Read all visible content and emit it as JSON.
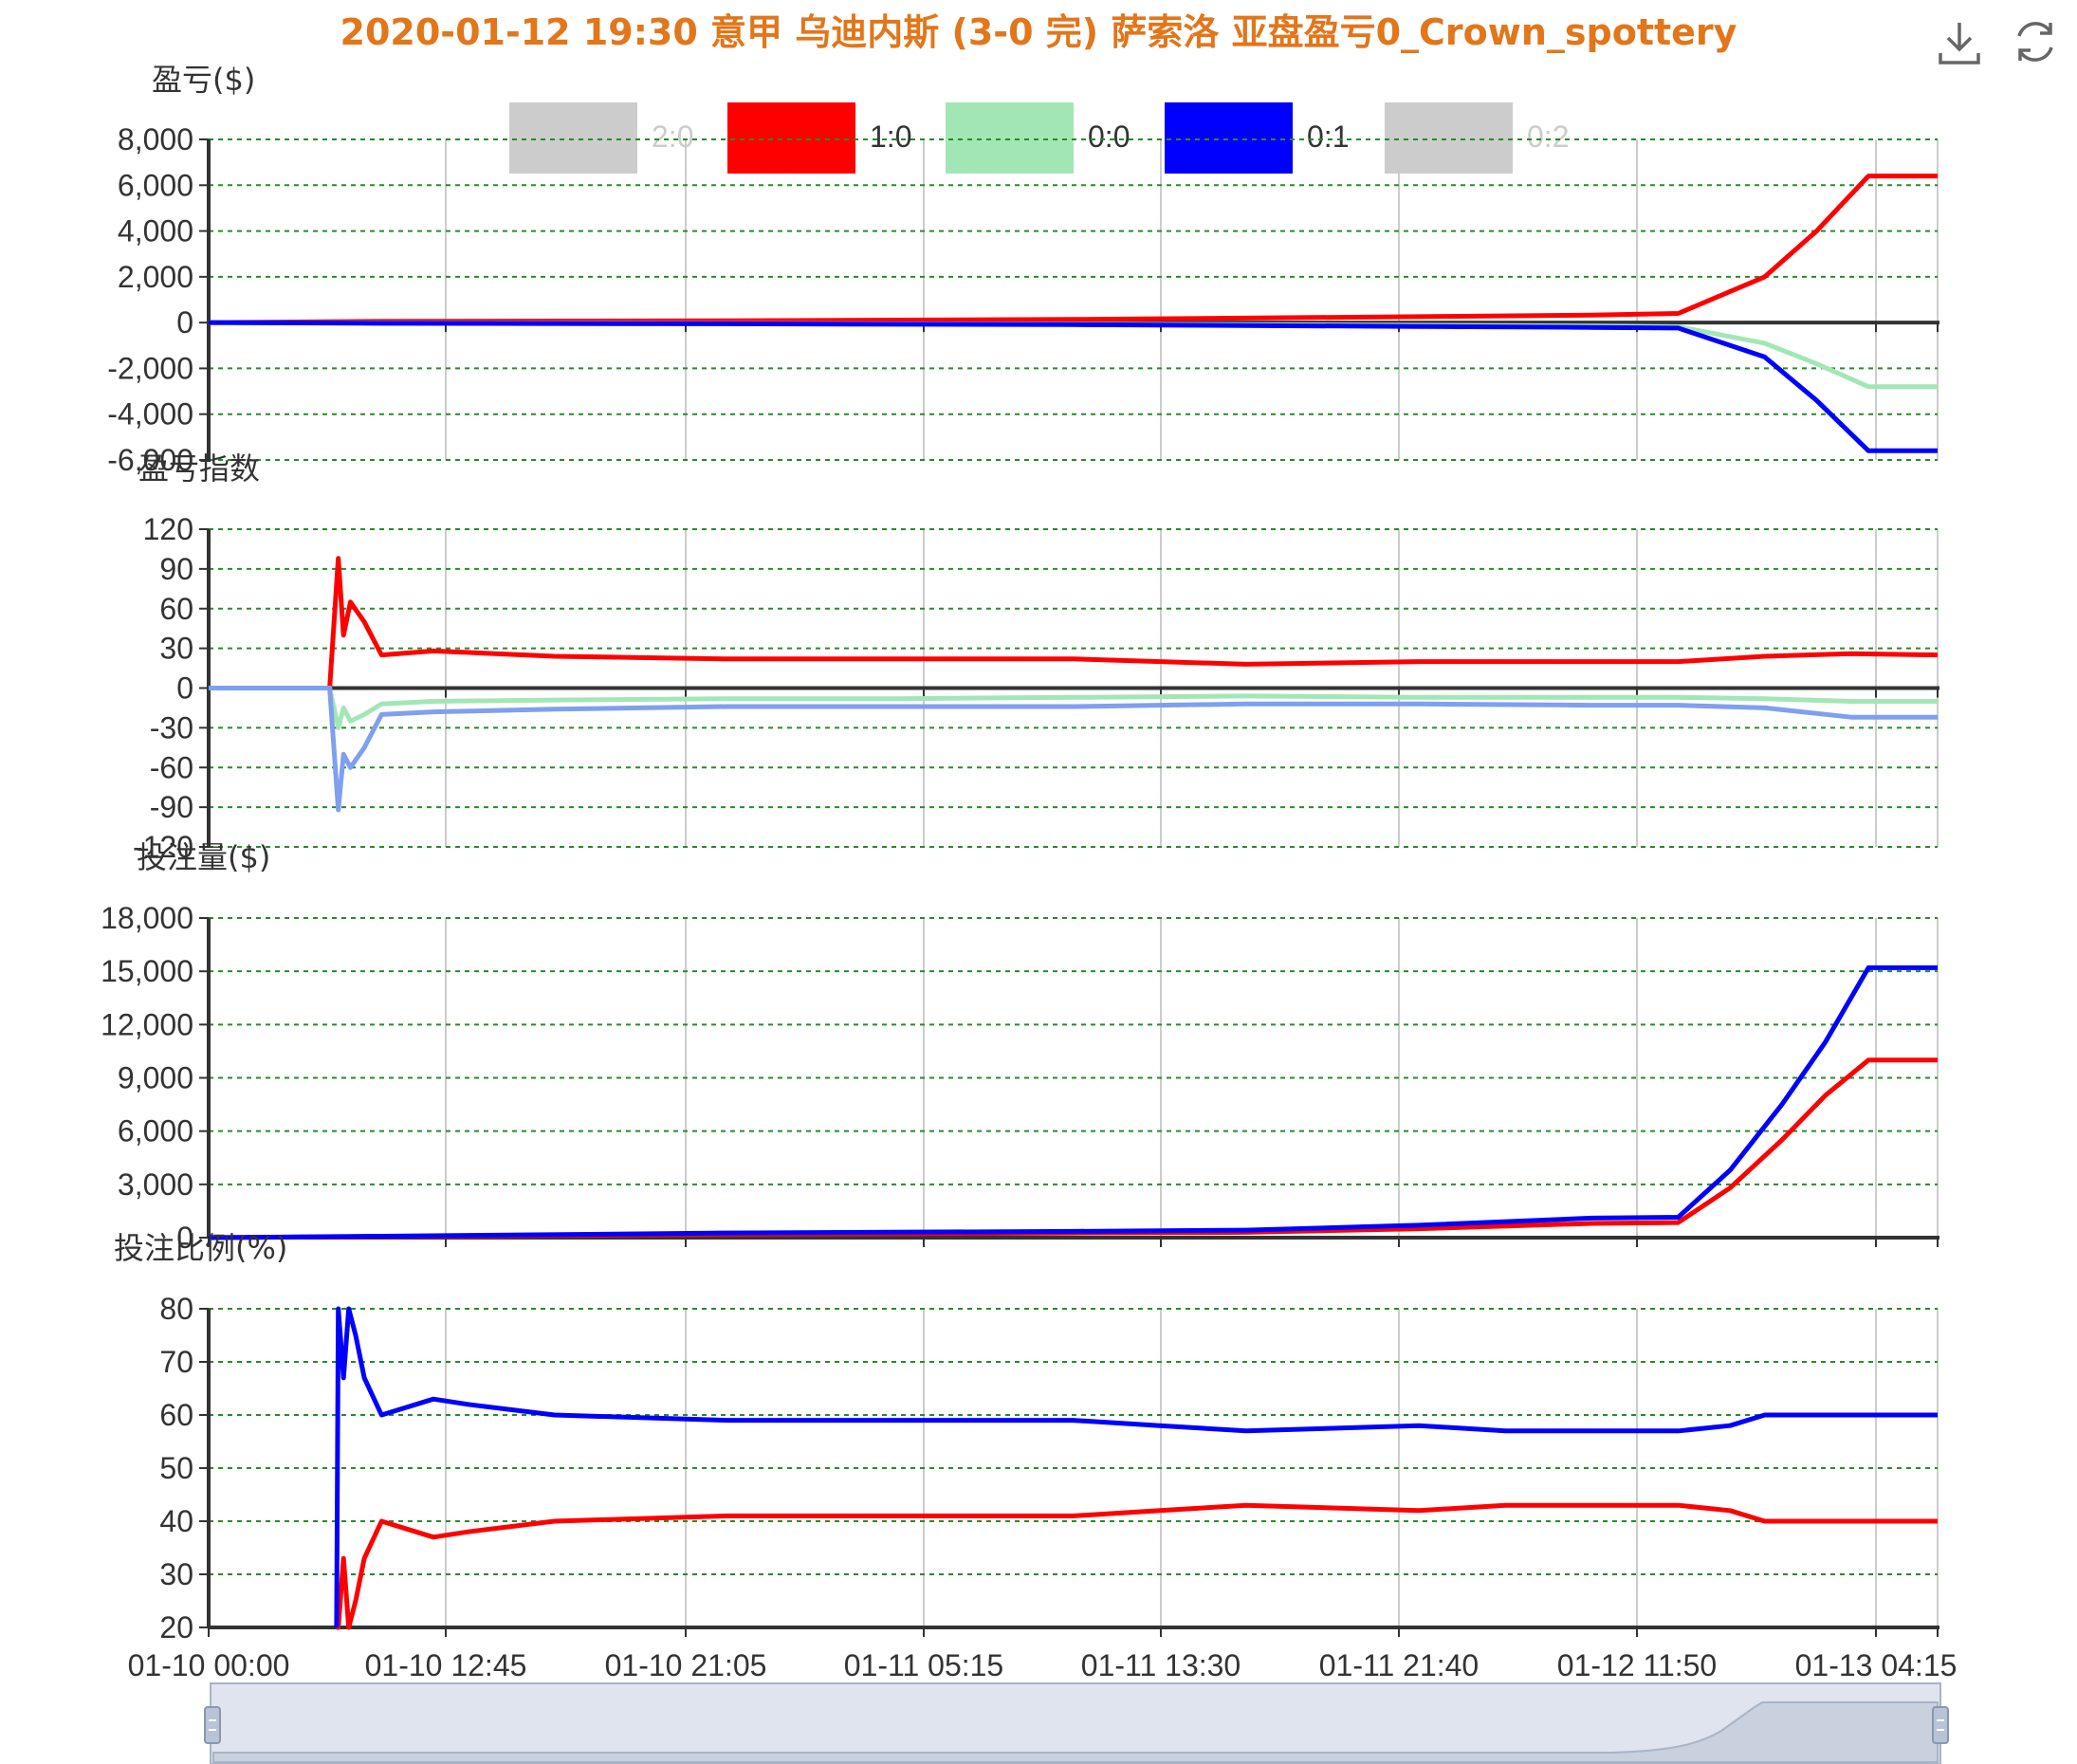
{
  "title": "2020-01-12 19:30 意甲 乌迪内斯 (3-0 完) 萨索洛 亚盘盈亏0_Crown_spottery",
  "colors": {
    "title": "#e2761a",
    "grid": "#2a8a2a",
    "axis": "#333333",
    "vgrid": "#cccccc",
    "zoom_fill": "#dfe4ee",
    "zoom_border": "#a8b3c6"
  },
  "toolbox": {
    "download": "download-icon",
    "refresh": "refresh-icon"
  },
  "legend": [
    {
      "name": "2:0",
      "color": "#cccccc",
      "active": false
    },
    {
      "name": "1:0",
      "color": "#ff0000",
      "active": true
    },
    {
      "name": "0:0",
      "color": "#a3e6b5",
      "active": true
    },
    {
      "name": "0:1",
      "color": "#0000ff",
      "active": true
    },
    {
      "name": "0:2",
      "color": "#cccccc",
      "active": false
    }
  ],
  "x_axis": {
    "tick_labels": [
      "01-10 00:00",
      "01-10 12:45",
      "01-10 21:05",
      "01-11 05:15",
      "01-11 13:30",
      "01-11 21:40",
      "01-12 11:50",
      "01-13 04:15"
    ]
  },
  "chart_data": [
    {
      "type": "line",
      "title": "盈亏($)",
      "ylim": [
        -6000,
        8000
      ],
      "yticks": [
        8000,
        6000,
        4000,
        2000,
        0,
        -2000,
        -4000,
        -6000
      ],
      "ytick_labels": [
        "8,000",
        "6,000",
        "4,000",
        "2,000",
        "0",
        "-2,000",
        "-4,000",
        "-6,000"
      ],
      "x": [
        0,
        0.1,
        0.3,
        0.5,
        0.7,
        0.8,
        0.85,
        0.9,
        0.93,
        0.96,
        1.0
      ],
      "series": [
        {
          "name": "1:0",
          "color": "#ff0000",
          "values": [
            0,
            50,
            80,
            140,
            260,
            330,
            400,
            2000,
            4000,
            6400,
            6400
          ]
        },
        {
          "name": "0:0",
          "color": "#a3e6b5",
          "values": [
            0,
            -20,
            -40,
            -70,
            -120,
            -150,
            -180,
            -900,
            -1800,
            -2800,
            -2800
          ]
        },
        {
          "name": "0:1",
          "color": "#0000ff",
          "values": [
            0,
            -30,
            -50,
            -90,
            -170,
            -210,
            -240,
            -1500,
            -3400,
            -5600,
            -5600
          ]
        }
      ]
    },
    {
      "type": "line",
      "title": "盈亏指数",
      "ylim": [
        -120,
        120
      ],
      "yticks": [
        120,
        90,
        60,
        30,
        0,
        -30,
        -60,
        -90,
        -120
      ],
      "ytick_labels": [
        "120",
        "90",
        "60",
        "30",
        "0",
        "-30",
        "-60",
        "-90",
        "-120"
      ],
      "x": [
        0,
        0.07,
        0.075,
        0.078,
        0.082,
        0.09,
        0.1,
        0.13,
        0.2,
        0.3,
        0.4,
        0.5,
        0.6,
        0.7,
        0.8,
        0.85,
        0.9,
        0.95,
        1.0
      ],
      "series": [
        {
          "name": "1:0",
          "color": "#ff0000",
          "values": [
            0,
            0,
            98,
            40,
            65,
            50,
            25,
            28,
            24,
            22,
            22,
            22,
            18,
            20,
            20,
            20,
            24,
            26,
            25
          ]
        },
        {
          "name": "0:0",
          "color": "#a3e6b5",
          "values": [
            0,
            0,
            -30,
            -15,
            -25,
            -20,
            -12,
            -10,
            -9,
            -8,
            -8,
            -7,
            -6,
            -7,
            -7,
            -7,
            -8,
            -10,
            -10
          ]
        },
        {
          "name": "0:1",
          "color": "#7f9fef",
          "values": [
            0,
            0,
            -92,
            -50,
            -60,
            -45,
            -20,
            -18,
            -16,
            -14,
            -14,
            -14,
            -12,
            -12,
            -13,
            -13,
            -15,
            -22,
            -22
          ]
        }
      ]
    },
    {
      "type": "line",
      "title": "投注量($)",
      "ylim": [
        0,
        18000
      ],
      "yticks": [
        18000,
        15000,
        12000,
        9000,
        6000,
        3000,
        0
      ],
      "ytick_labels": [
        "18,000",
        "15,000",
        "12,000",
        "9,000",
        "6,000",
        "3,000",
        "0"
      ],
      "x": [
        0,
        0.1,
        0.3,
        0.5,
        0.6,
        0.7,
        0.8,
        0.85,
        0.88,
        0.91,
        0.935,
        0.96,
        1.0
      ],
      "series": [
        {
          "name": "1:0",
          "color": "#ff0000",
          "values": [
            0,
            60,
            180,
            260,
            300,
            500,
            800,
            850,
            2800,
            5500,
            8000,
            10000,
            10000
          ]
        },
        {
          "name": "0:1",
          "color": "#0000ff",
          "values": [
            0,
            80,
            260,
            350,
            420,
            700,
            1100,
            1150,
            3800,
            7500,
            11000,
            15200,
            15200
          ]
        }
      ]
    },
    {
      "type": "line",
      "title": "投注比例(%)",
      "ylim": [
        20,
        80
      ],
      "yticks": [
        80,
        70,
        60,
        50,
        40,
        30,
        20
      ],
      "ytick_labels": [
        "80",
        "70",
        "60",
        "50",
        "40",
        "30",
        "20"
      ],
      "x": [
        0.074,
        0.075,
        0.078,
        0.081,
        0.085,
        0.09,
        0.1,
        0.13,
        0.15,
        0.2,
        0.3,
        0.4,
        0.5,
        0.55,
        0.6,
        0.7,
        0.75,
        0.8,
        0.85,
        0.88,
        0.9,
        0.95,
        1.0
      ],
      "series": [
        {
          "name": "1:0",
          "color": "#ff0000",
          "values": [
            20,
            20,
            33,
            20,
            25,
            33,
            40,
            37,
            38,
            40,
            41,
            41,
            41,
            42,
            43,
            42,
            43,
            43,
            43,
            42,
            40,
            40,
            40
          ]
        },
        {
          "name": "0:1",
          "color": "#0000ff",
          "values": [
            20,
            80,
            67,
            80,
            75,
            67,
            60,
            63,
            62,
            60,
            59,
            59,
            59,
            58,
            57,
            58,
            57,
            57,
            57,
            58,
            60,
            60,
            60
          ]
        }
      ]
    }
  ]
}
